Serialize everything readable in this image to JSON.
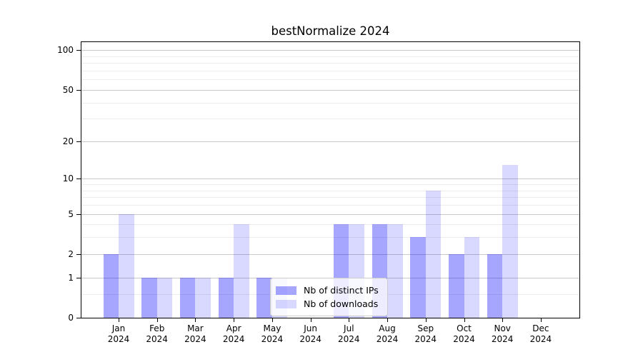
{
  "title": "bestNormalize 2024",
  "chart_data": {
    "type": "bar",
    "title": "bestNormalize 2024",
    "xlabel": "",
    "ylabel": "",
    "categories": [
      "Jan 2024",
      "Feb 2024",
      "Mar 2024",
      "Apr 2024",
      "May 2024",
      "Jun 2024",
      "Jul 2024",
      "Aug 2024",
      "Sep 2024",
      "Oct 2024",
      "Nov 2024",
      "Dec 2024"
    ],
    "series": [
      {
        "name": "Nb of distinct IPs",
        "color": "rgba(0,0,255,0.35)",
        "values": [
          2,
          1,
          1,
          1,
          1,
          0,
          4,
          4,
          3,
          2,
          2,
          0
        ]
      },
      {
        "name": "Nb of downloads",
        "color": "rgba(0,0,255,0.15)",
        "values": [
          5,
          1,
          1,
          4,
          1,
          0,
          4,
          4,
          8,
          3,
          13,
          0
        ]
      }
    ],
    "yscale": "log1p",
    "ylim": [
      0,
      115
    ],
    "yticks_major": [
      0,
      1,
      2,
      5,
      10,
      20,
      50,
      100
    ],
    "yticks_minor": [
      0.5,
      3,
      4,
      6,
      7,
      8,
      9,
      30,
      40,
      60,
      70,
      80,
      90
    ],
    "grid": true,
    "legend": {
      "position": "inside-bottom-center",
      "entries": [
        "Nb of distinct IPs",
        "Nb of downloads"
      ]
    },
    "colors": {
      "bar_distinct_ips": "rgba(0,0,255,0.35)",
      "bar_downloads": "rgba(0,0,255,0.15)",
      "grid_major": "#c9c9c9",
      "grid_minor": "#ededed",
      "spine": "#000000",
      "background": "#ffffff"
    }
  }
}
